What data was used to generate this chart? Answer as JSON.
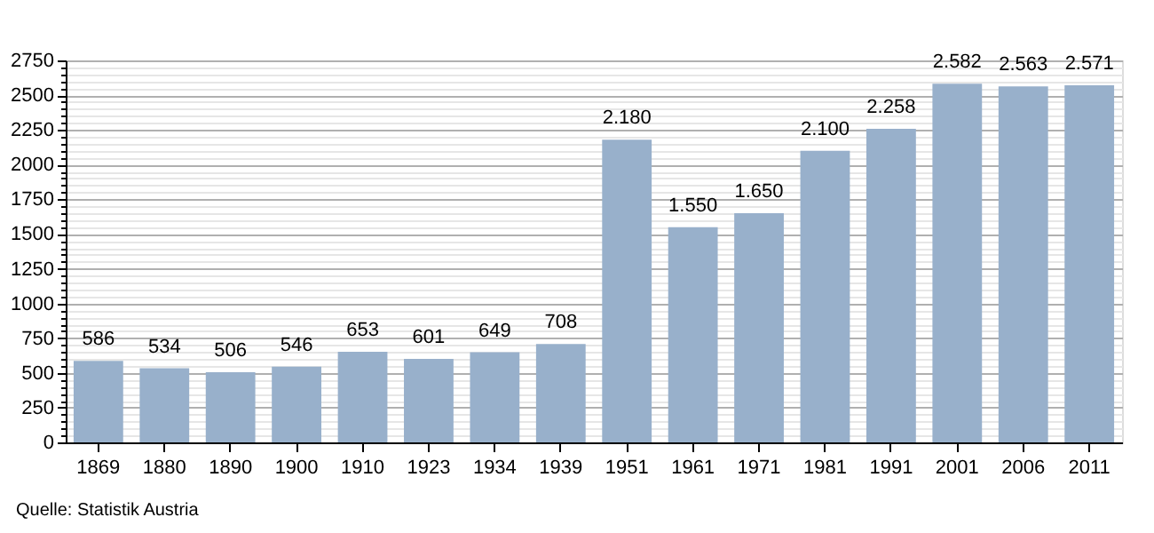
{
  "chart_data": {
    "type": "bar",
    "categories": [
      "1869",
      "1880",
      "1890",
      "1900",
      "1910",
      "1923",
      "1934",
      "1939",
      "1951",
      "1961",
      "1971",
      "1981",
      "1991",
      "2001",
      "2006",
      "2011"
    ],
    "values": [
      586,
      534,
      506,
      546,
      653,
      601,
      649,
      708,
      2180,
      1550,
      1650,
      2100,
      2258,
      2582,
      2563,
      2571
    ],
    "value_labels": [
      "586",
      "534",
      "506",
      "546",
      "653",
      "601",
      "649",
      "708",
      "2.180",
      "1.550",
      "1.650",
      "2.100",
      "2.258",
      "2.582",
      "2.563",
      "2.571"
    ],
    "color": "#98b0cb",
    "ylim": [
      0,
      2750
    ],
    "yticks": [
      0,
      {
        "value": 50,
        "label": null
      },
      {
        "value": 100,
        "label": null
      },
      {
        "value": 150,
        "label": null
      },
      {
        "value": 200,
        "label": null
      },
      250,
      {
        "value": 300,
        "label": null
      },
      {
        "value": 350,
        "label": null
      },
      {
        "value": 400,
        "label": null
      },
      {
        "value": 450,
        "label": null
      },
      500,
      {
        "value": 550,
        "label": null
      },
      {
        "value": 600,
        "label": null
      },
      {
        "value": 650,
        "label": null
      },
      {
        "value": 700,
        "label": null
      },
      750,
      {
        "value": 800,
        "label": null
      },
      {
        "value": 850,
        "label": null
      },
      {
        "value": 900,
        "label": null
      },
      {
        "value": 950,
        "label": null
      },
      1000,
      {
        "value": 1050,
        "label": null
      },
      {
        "value": 1100,
        "label": null
      },
      {
        "value": 1150,
        "label": null
      },
      {
        "value": 1200,
        "label": null
      },
      1250,
      {
        "value": 1300,
        "label": null
      },
      {
        "value": 1350,
        "label": null
      },
      {
        "value": 1400,
        "label": null
      },
      {
        "value": 1450,
        "label": null
      },
      1500,
      {
        "value": 1550,
        "label": null
      },
      {
        "value": 1600,
        "label": null
      },
      {
        "value": 1650,
        "label": null
      },
      {
        "value": 1700,
        "label": null
      },
      1750,
      {
        "value": 1800,
        "label": null
      },
      {
        "value": 1850,
        "label": null
      },
      {
        "value": 1900,
        "label": null
      },
      {
        "value": 1950,
        "label": null
      },
      2000,
      {
        "value": 2050,
        "label": null
      },
      {
        "value": 2100,
        "label": null
      },
      {
        "value": 2150,
        "label": null
      },
      {
        "value": 2200,
        "label": null
      },
      2250,
      {
        "value": 2300,
        "label": null
      },
      {
        "value": 2350,
        "label": null
      },
      {
        "value": 2400,
        "label": null
      },
      {
        "value": 2450,
        "label": null
      },
      2500,
      {
        "value": 2550,
        "label": null
      },
      {
        "value": 2600,
        "label": null
      },
      {
        "value": 2650,
        "label": null
      },
      {
        "value": 2700,
        "label": null
      },
      2750
    ],
    "grid": "y",
    "annotations": [
      "Quelle: Statistik Austria"
    ]
  }
}
